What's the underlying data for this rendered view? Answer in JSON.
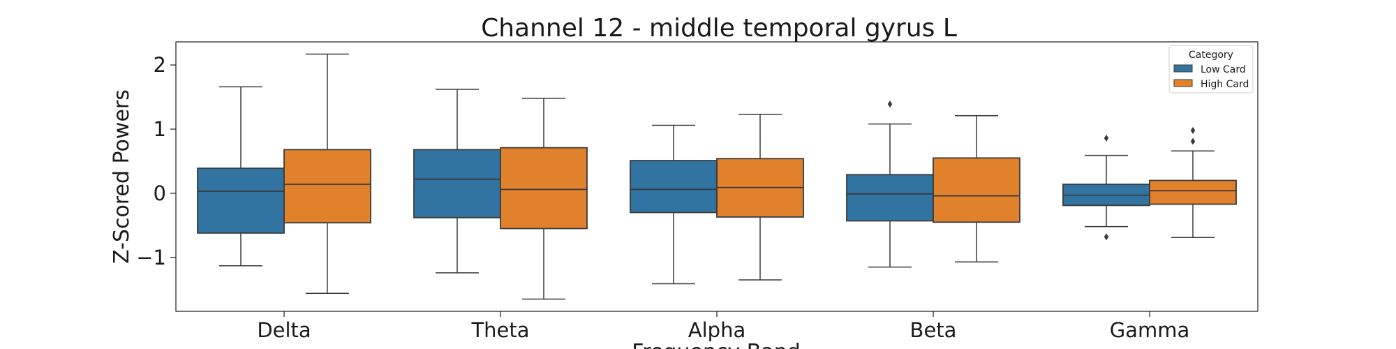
{
  "chart_data": {
    "type": "boxplot",
    "title": "Channel 12 - middle temporal gyrus L",
    "xlabel": "Frequency Band",
    "ylabel": "Z-Scored Powers",
    "categories": [
      "Delta",
      "Theta",
      "Alpha",
      "Beta",
      "Gamma"
    ],
    "ylim": [
      -1.84,
      2.36
    ],
    "yticks": [
      2,
      1,
      0,
      -1
    ],
    "ytick_labels": [
      "2",
      "1",
      "0",
      "−1"
    ],
    "legend": {
      "title": "Category",
      "placement": "top-right"
    },
    "series": [
      {
        "name": "Low Card",
        "color": "#3274a1",
        "boxes": [
          {
            "whislo": -1.13,
            "q1": -0.62,
            "med": 0.03,
            "q3": 0.39,
            "whishi": 1.66,
            "fliers": []
          },
          {
            "whislo": -1.24,
            "q1": -0.38,
            "med": 0.22,
            "q3": 0.68,
            "whishi": 1.62,
            "fliers": []
          },
          {
            "whislo": -1.41,
            "q1": -0.3,
            "med": 0.06,
            "q3": 0.51,
            "whishi": 1.06,
            "fliers": []
          },
          {
            "whislo": -1.15,
            "q1": -0.43,
            "med": -0.01,
            "q3": 0.29,
            "whishi": 1.08,
            "fliers": [
              1.39
            ]
          },
          {
            "whislo": -0.52,
            "q1": -0.19,
            "med": -0.03,
            "q3": 0.14,
            "whishi": 0.59,
            "fliers": [
              0.86,
              -0.68
            ]
          }
        ]
      },
      {
        "name": "High Card",
        "color": "#e1812c",
        "boxes": [
          {
            "whislo": -1.56,
            "q1": -0.46,
            "med": 0.14,
            "q3": 0.68,
            "whishi": 2.17,
            "fliers": []
          },
          {
            "whislo": -1.65,
            "q1": -0.55,
            "med": 0.06,
            "q3": 0.71,
            "whishi": 1.48,
            "fliers": []
          },
          {
            "whislo": -1.35,
            "q1": -0.37,
            "med": 0.09,
            "q3": 0.54,
            "whishi": 1.23,
            "fliers": []
          },
          {
            "whislo": -1.07,
            "q1": -0.45,
            "med": -0.04,
            "q3": 0.55,
            "whishi": 1.21,
            "fliers": []
          },
          {
            "whislo": -0.69,
            "q1": -0.17,
            "med": 0.04,
            "q3": 0.2,
            "whishi": 0.66,
            "fliers": [
              0.98,
              0.81
            ]
          }
        ]
      }
    ]
  }
}
